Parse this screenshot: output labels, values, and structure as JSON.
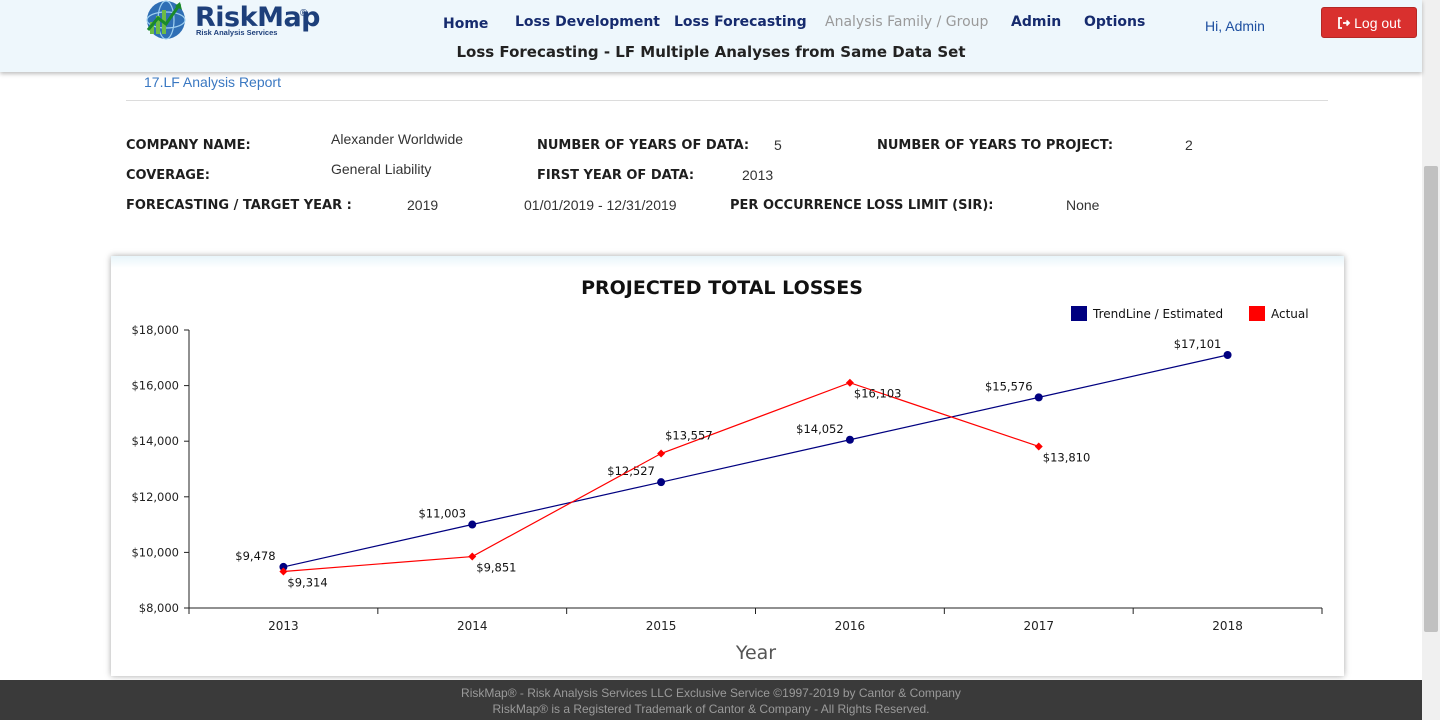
{
  "header": {
    "logo_text": "RiskMap",
    "logo_reg": "®",
    "logo_sub": "Risk Analysis Services",
    "nav": [
      {
        "label": "Home",
        "enabled": true
      },
      {
        "label": "Loss Development",
        "enabled": true
      },
      {
        "label": "Loss Forecasting",
        "enabled": true
      },
      {
        "label": "Analysis Family / Group",
        "enabled": false
      },
      {
        "label": "Admin",
        "enabled": true
      },
      {
        "label": "Options",
        "enabled": true
      }
    ],
    "greeting": "Hi, Admin",
    "logout_label": "Log out",
    "subtitle": "Loss Forecasting - LF Multiple Analyses from Same Data Set"
  },
  "breadcrumb": "17.LF Analysis Report",
  "info": {
    "company_label": "COMPANY NAME:",
    "company_value": "Alexander Worldwide",
    "coverage_label": "COVERAGE:",
    "coverage_value": "General Liability",
    "forecast_label": "FORECASTING / TARGET YEAR :",
    "forecast_value": "2019",
    "forecast_range": "01/01/2019 - 12/31/2019",
    "years_data_label": "NUMBER OF YEARS OF DATA:",
    "years_data_value": "5",
    "first_year_label": "FIRST YEAR OF DATA:",
    "first_year_value": "2013",
    "sir_label": "PER OCCURRENCE LOSS LIMIT (SIR):",
    "sir_value": "None",
    "years_project_label": "NUMBER OF YEARS TO PROJECT:",
    "years_project_value": "2"
  },
  "chart_data": {
    "type": "line",
    "title": "PROJECTED TOTAL LOSSES",
    "xlabel": "Year",
    "ylabel": "",
    "categories": [
      "2013",
      "2014",
      "2015",
      "2016",
      "2017",
      "2018"
    ],
    "ylim": [
      8000,
      18000
    ],
    "yticks": [
      "$8,000",
      "$10,000",
      "$12,000",
      "$14,000",
      "$16,000",
      "$18,000"
    ],
    "legend_position": "top-right",
    "grid": false,
    "series": [
      {
        "name": "TrendLine / Estimated",
        "color": "#000080",
        "marker": "circle",
        "values": [
          9478,
          11003,
          12527,
          14052,
          15576,
          17101
        ],
        "labels": [
          "$9,478",
          "$11,003",
          "$12,527",
          "$14,052",
          "$15,576",
          "$17,101"
        ]
      },
      {
        "name": "Actual",
        "color": "#ff0000",
        "marker": "diamond",
        "values": [
          9314,
          9851,
          13557,
          16103,
          13810,
          null
        ],
        "labels": [
          "$9,314",
          "$9,851",
          "$13,557",
          "$16,103",
          "$13,810",
          null
        ]
      }
    ]
  },
  "footer": {
    "line1": "RiskMap® - Risk Analysis Services LLC Exclusive Service ©1997-2019 by Cantor & Company",
    "line2": "RiskMap® is a Registered Trademark of Cantor & Company - All Rights Reserved."
  }
}
